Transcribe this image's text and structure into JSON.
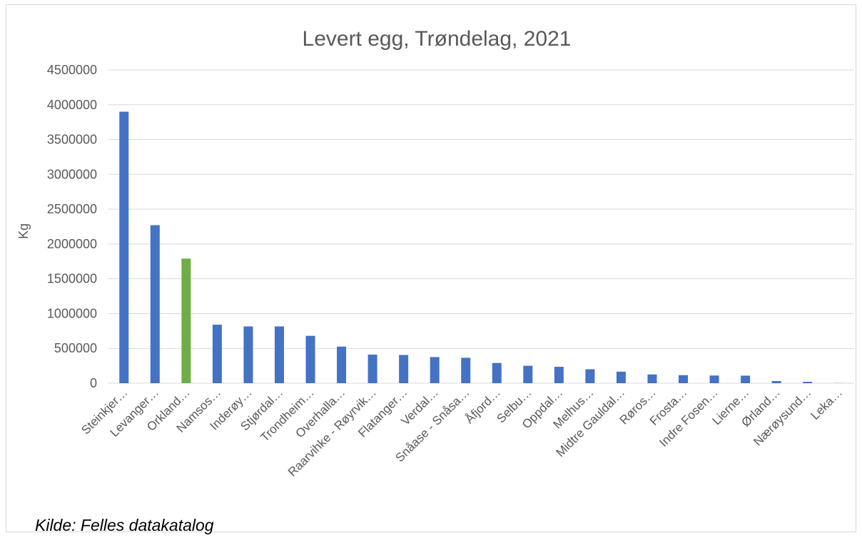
{
  "chart_data": {
    "type": "bar",
    "title": "Levert egg, Trøndelag, 2021",
    "xlabel": "",
    "ylabel": "Kg",
    "ylim": [
      0,
      4500000
    ],
    "yticks": [
      0,
      500000,
      1000000,
      1500000,
      2000000,
      2500000,
      3000000,
      3500000,
      4000000,
      4500000
    ],
    "grid": true,
    "legend": "none",
    "categories": [
      "Steinkjer…",
      "Levanger…",
      "Orkland…",
      "Namsos…",
      "Inderøy…",
      "Stjørdal…",
      "Trondheim…",
      "Overhalla…",
      "Raarvihke - Røyrvik…",
      "Flatanger…",
      "Verdal…",
      "Snåase - Snåsa…",
      "Åfjord…",
      "Selbu…",
      "Oppdal…",
      "Melhus…",
      "Midtre Gauldal…",
      "Røros…",
      "Frosta…",
      "Indre Fosen…",
      "Lierne…",
      "Ørland…",
      "Nærøysund…",
      "Leka…"
    ],
    "values": [
      3900000,
      2270000,
      1790000,
      840000,
      815000,
      815000,
      680000,
      525000,
      410000,
      405000,
      375000,
      365000,
      290000,
      250000,
      235000,
      200000,
      165000,
      125000,
      115000,
      110000,
      108000,
      30000,
      20000,
      2000
    ],
    "colors": {
      "default": "#4472c4",
      "highlight": "#70ad47"
    },
    "highlight_category": "Orkland…"
  },
  "source_note": "Kilde: Felles datakatalog"
}
